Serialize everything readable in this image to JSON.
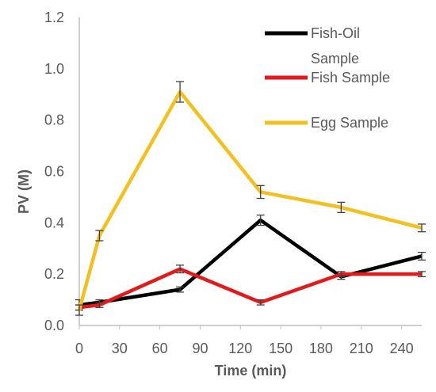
{
  "chart_data": {
    "type": "line",
    "title": "",
    "xlabel": "Time (min)",
    "ylabel": "PV (M)",
    "xlim": [
      0,
      255
    ],
    "ylim": [
      0,
      1.2
    ],
    "x_ticks": [
      0,
      30,
      60,
      90,
      120,
      150,
      180,
      210,
      240
    ],
    "y_ticks": [
      "0.0",
      "0.2",
      "0.4",
      "0.6",
      "0.8",
      "1.0",
      "1.2"
    ],
    "grid": false,
    "legend_position": "top-right",
    "series": [
      {
        "name": "Fish-Oil Sample",
        "color": "#000000",
        "x": [
          0,
          15,
          75,
          135,
          195,
          255
        ],
        "y": [
          0.08,
          0.09,
          0.14,
          0.41,
          0.19,
          0.27
        ],
        "error": [
          0.02,
          0.01,
          0.01,
          0.02,
          0.01,
          0.015
        ]
      },
      {
        "name": "Fish Sample",
        "color": "#e31a1c",
        "x": [
          0,
          15,
          75,
          135,
          195,
          255
        ],
        "y": [
          0.07,
          0.08,
          0.22,
          0.09,
          0.2,
          0.2
        ],
        "error": [
          0.01,
          0.01,
          0.015,
          0.01,
          0.01,
          0.01
        ]
      },
      {
        "name": "Egg Sample",
        "color": "#f2c01f",
        "x": [
          0,
          15,
          75,
          135,
          195,
          255
        ],
        "y": [
          0.06,
          0.35,
          0.91,
          0.52,
          0.46,
          0.38
        ],
        "error": [
          0.02,
          0.02,
          0.04,
          0.025,
          0.02,
          0.015
        ]
      }
    ],
    "legend": [
      {
        "line1": "Fish-Oil",
        "line2": "Sample"
      },
      {
        "line1": "Fish Sample",
        "line2": ""
      },
      {
        "line1": "Egg Sample",
        "line2": ""
      }
    ]
  }
}
